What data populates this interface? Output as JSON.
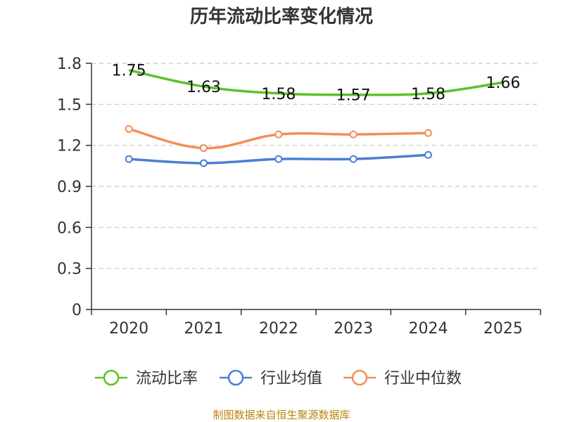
{
  "chart_data": {
    "type": "line",
    "title": "历年流动比率变化情况",
    "categories": [
      "2020",
      "2021",
      "2022",
      "2023",
      "2024",
      "2025"
    ],
    "yticks": [
      "0",
      "0.3",
      "0.6",
      "0.9",
      "1.2",
      "1.5",
      "1.8"
    ],
    "ylim": [
      0,
      1.8
    ],
    "grid": true,
    "legend_position": "bottom",
    "series": [
      {
        "name": "流动比率",
        "color": "#5cc22c",
        "labels": true,
        "values": [
          1.75,
          1.63,
          1.58,
          1.57,
          1.58,
          1.66
        ],
        "value_labels": [
          "1.75",
          "1.63",
          "1.58",
          "1.57",
          "1.58",
          "1.66"
        ]
      },
      {
        "name": "行业均值",
        "color": "#4b7fd6",
        "labels": false,
        "values": [
          1.1,
          1.07,
          1.1,
          1.1,
          1.13,
          null
        ]
      },
      {
        "name": "行业中位数",
        "color": "#f28e58",
        "labels": false,
        "values": [
          1.32,
          1.18,
          1.28,
          1.28,
          1.29,
          null
        ]
      }
    ],
    "source": "制图数据来自恒生聚源数据库"
  }
}
